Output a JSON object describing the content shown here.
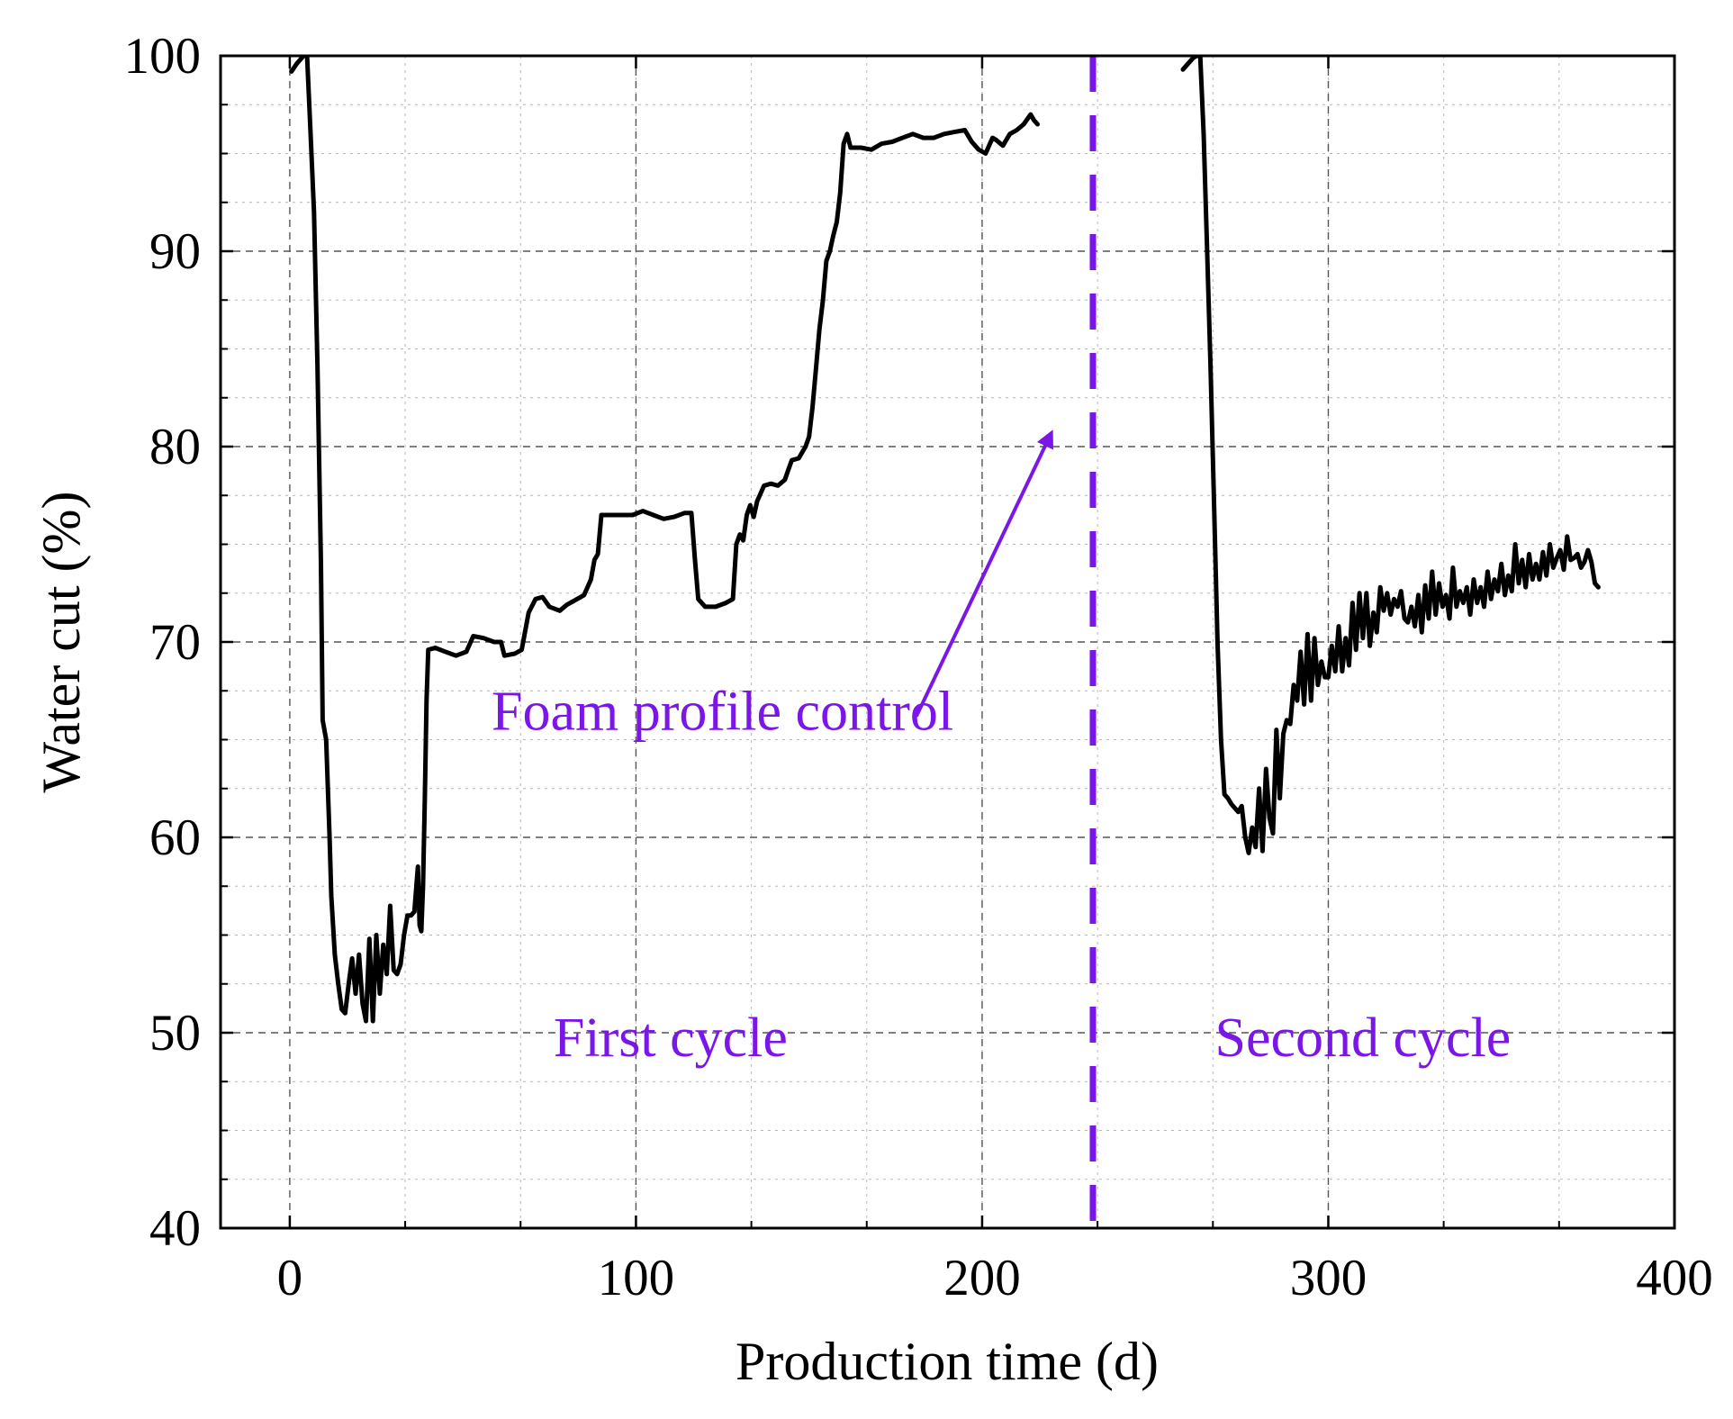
{
  "chart_data": {
    "type": "line",
    "title": "",
    "xlabel": "Production time (d)",
    "ylabel": "Water cut (%)",
    "xlim": [
      -20,
      400
    ],
    "ylim": [
      40,
      100
    ],
    "xticks": [
      0,
      100,
      200,
      300,
      400
    ],
    "yticks": [
      40,
      50,
      60,
      70,
      80,
      90,
      100
    ],
    "x_minor_step": 33.333,
    "y_minor_step": 2.5,
    "grid": true,
    "colors": {
      "series": "#000000",
      "accent": "#7b16e8",
      "grid": "#9a9a9a"
    },
    "series": [
      {
        "name": "First cycle",
        "points": [
          [
            0.5,
            99.2
          ],
          [
            2,
            99.6
          ],
          [
            4,
            100
          ],
          [
            5,
            100
          ],
          [
            6,
            96
          ],
          [
            7,
            92
          ],
          [
            8,
            84
          ],
          [
            9,
            74
          ],
          [
            9.5,
            66
          ],
          [
            10.5,
            65
          ],
          [
            11.5,
            60
          ],
          [
            12,
            57
          ],
          [
            13,
            54
          ],
          [
            14,
            52.5
          ],
          [
            15,
            51.2
          ],
          [
            16,
            51
          ],
          [
            17,
            52.5
          ],
          [
            18,
            53.8
          ],
          [
            19,
            52
          ],
          [
            20,
            54
          ],
          [
            21,
            51.5
          ],
          [
            22,
            50.6
          ],
          [
            23,
            54.8
          ],
          [
            24,
            50.6
          ],
          [
            25,
            55
          ],
          [
            26,
            52
          ],
          [
            27,
            54.5
          ],
          [
            28,
            53
          ],
          [
            29,
            56.5
          ],
          [
            30,
            53.2
          ],
          [
            31,
            53
          ],
          [
            32,
            53.5
          ],
          [
            33,
            55
          ],
          [
            34,
            56
          ],
          [
            35,
            56
          ],
          [
            36,
            56.2
          ],
          [
            37,
            58.5
          ],
          [
            37.5,
            55.5
          ],
          [
            38,
            55.2
          ],
          [
            38.5,
            57.5
          ],
          [
            39,
            62
          ],
          [
            39.5,
            67
          ],
          [
            40,
            69.6
          ],
          [
            42,
            69.7
          ],
          [
            45,
            69.5
          ],
          [
            48,
            69.3
          ],
          [
            51,
            69.5
          ],
          [
            53,
            70.3
          ],
          [
            56,
            70.2
          ],
          [
            59,
            70
          ],
          [
            61,
            70
          ],
          [
            62,
            69.3
          ],
          [
            65,
            69.4
          ],
          [
            67,
            69.6
          ],
          [
            69,
            71.5
          ],
          [
            71,
            72.2
          ],
          [
            73,
            72.3
          ],
          [
            75,
            71.8
          ],
          [
            78,
            71.6
          ],
          [
            80,
            71.9
          ],
          [
            83,
            72.2
          ],
          [
            85,
            72.4
          ],
          [
            87,
            73.2
          ],
          [
            88,
            74.2
          ],
          [
            89,
            74.5
          ],
          [
            90,
            76.5
          ],
          [
            93,
            76.5
          ],
          [
            96,
            76.5
          ],
          [
            99,
            76.5
          ],
          [
            102,
            76.7
          ],
          [
            105,
            76.5
          ],
          [
            108,
            76.3
          ],
          [
            111,
            76.4
          ],
          [
            114,
            76.6
          ],
          [
            116,
            76.6
          ],
          [
            117,
            74.3
          ],
          [
            118,
            72.2
          ],
          [
            120,
            71.8
          ],
          [
            123,
            71.8
          ],
          [
            126,
            72
          ],
          [
            128,
            72.2
          ],
          [
            129,
            75
          ],
          [
            130,
            75.5
          ],
          [
            131,
            75.2
          ],
          [
            132,
            76.5
          ],
          [
            133,
            77
          ],
          [
            134,
            76.4
          ],
          [
            135,
            77.2
          ],
          [
            137,
            78
          ],
          [
            139,
            78.1
          ],
          [
            141,
            78
          ],
          [
            143,
            78.3
          ],
          [
            144,
            78.8
          ],
          [
            145,
            79.3
          ],
          [
            147,
            79.4
          ],
          [
            149,
            80
          ],
          [
            150,
            80.5
          ],
          [
            151,
            82
          ],
          [
            152,
            84
          ],
          [
            153,
            86
          ],
          [
            154,
            87.5
          ],
          [
            155,
            89.5
          ],
          [
            156,
            90
          ],
          [
            157,
            90.8
          ],
          [
            158,
            91.5
          ],
          [
            159,
            93
          ],
          [
            160,
            95.5
          ],
          [
            161,
            96
          ],
          [
            162,
            95.3
          ],
          [
            165,
            95.3
          ],
          [
            168,
            95.2
          ],
          [
            171,
            95.5
          ],
          [
            174,
            95.6
          ],
          [
            177,
            95.8
          ],
          [
            180,
            96
          ],
          [
            183,
            95.8
          ],
          [
            186,
            95.8
          ],
          [
            189,
            96
          ],
          [
            192,
            96.1
          ],
          [
            195,
            96.2
          ],
          [
            197,
            95.6
          ],
          [
            199,
            95.2
          ],
          [
            201,
            95
          ],
          [
            203,
            95.8
          ],
          [
            204,
            95.7
          ],
          [
            206,
            95.4
          ],
          [
            208,
            96
          ],
          [
            210,
            96.2
          ],
          [
            212,
            96.5
          ],
          [
            214,
            97
          ],
          [
            215,
            96.7
          ],
          [
            216,
            96.5
          ]
        ]
      },
      {
        "name": "Second cycle",
        "points": [
          [
            258,
            99.3
          ],
          [
            259.5,
            99.6
          ],
          [
            261,
            99.9
          ],
          [
            262,
            100
          ],
          [
            263,
            100
          ],
          [
            264,
            96
          ],
          [
            265,
            90
          ],
          [
            266,
            84
          ],
          [
            267,
            77
          ],
          [
            268,
            70
          ],
          [
            269,
            65
          ],
          [
            270,
            62.2
          ],
          [
            271,
            62
          ],
          [
            272,
            61.7
          ],
          [
            273,
            61.5
          ],
          [
            274,
            61.3
          ],
          [
            275,
            61.6
          ],
          [
            276,
            60
          ],
          [
            277,
            59.2
          ],
          [
            278,
            60.5
          ],
          [
            279,
            59.5
          ],
          [
            280,
            62.5
          ],
          [
            281,
            59.3
          ],
          [
            282,
            63.5
          ],
          [
            283,
            61
          ],
          [
            284,
            60.2
          ],
          [
            285,
            65.5
          ],
          [
            286,
            62
          ],
          [
            287,
            65.3
          ],
          [
            288,
            66
          ],
          [
            289,
            65.8
          ],
          [
            290,
            67.8
          ],
          [
            291,
            67
          ],
          [
            292,
            69.5
          ],
          [
            293,
            66.8
          ],
          [
            294,
            70.4
          ],
          [
            295,
            67
          ],
          [
            296,
            70.2
          ],
          [
            297,
            67.8
          ],
          [
            298,
            69
          ],
          [
            299,
            68.2
          ],
          [
            300,
            68.2
          ],
          [
            301,
            69.8
          ],
          [
            302,
            68.5
          ],
          [
            303,
            70.8
          ],
          [
            304,
            68.5
          ],
          [
            305,
            70.2
          ],
          [
            306,
            68.8
          ],
          [
            307,
            72
          ],
          [
            308,
            69.6
          ],
          [
            309,
            72.5
          ],
          [
            310,
            70.2
          ],
          [
            311,
            72.5
          ],
          [
            312,
            69.8
          ],
          [
            313,
            71.5
          ],
          [
            314,
            70.5
          ],
          [
            315,
            72.8
          ],
          [
            316,
            71.6
          ],
          [
            317,
            72.5
          ],
          [
            318,
            71.4
          ],
          [
            319,
            72.2
          ],
          [
            320,
            71.8
          ],
          [
            321,
            72.6
          ],
          [
            322,
            71.2
          ],
          [
            323,
            71
          ],
          [
            324,
            71.8
          ],
          [
            325,
            70.8
          ],
          [
            326,
            72.4
          ],
          [
            327,
            70.5
          ],
          [
            328,
            72.9
          ],
          [
            329,
            71.2
          ],
          [
            330,
            73.6
          ],
          [
            331,
            71.4
          ],
          [
            332,
            73
          ],
          [
            333,
            71.8
          ],
          [
            334,
            72.4
          ],
          [
            335,
            71.2
          ],
          [
            336,
            73.8
          ],
          [
            337,
            71.8
          ],
          [
            338,
            72.6
          ],
          [
            339,
            72
          ],
          [
            340,
            72.8
          ],
          [
            341,
            71.4
          ],
          [
            342,
            73.2
          ],
          [
            343,
            72
          ],
          [
            344,
            72.8
          ],
          [
            345,
            71.8
          ],
          [
            346,
            73.6
          ],
          [
            347,
            72.2
          ],
          [
            348,
            73.2
          ],
          [
            349,
            72.6
          ],
          [
            350,
            74
          ],
          [
            351,
            72.4
          ],
          [
            352,
            73.4
          ],
          [
            353,
            72.6
          ],
          [
            354,
            75
          ],
          [
            355,
            73
          ],
          [
            356,
            74.2
          ],
          [
            357,
            72.8
          ],
          [
            358,
            74.5
          ],
          [
            359,
            73.2
          ],
          [
            360,
            74
          ],
          [
            361,
            73.2
          ],
          [
            362,
            74.6
          ],
          [
            363,
            73.4
          ],
          [
            364,
            75
          ],
          [
            365,
            73.8
          ],
          [
            366,
            74.3
          ],
          [
            367,
            74.7
          ],
          [
            368,
            73.7
          ],
          [
            369,
            75.4
          ],
          [
            370,
            74.2
          ],
          [
            371,
            74.3
          ],
          [
            372,
            74.5
          ],
          [
            373,
            73.8
          ],
          [
            374,
            74.1
          ],
          [
            375,
            74.7
          ],
          [
            376,
            74.1
          ],
          [
            377,
            73
          ],
          [
            378,
            72.8
          ]
        ]
      }
    ],
    "divider": {
      "x": 232,
      "label": ""
    },
    "annotations": [
      {
        "text": "Foam profile control",
        "x": 125,
        "y": 65.5
      },
      {
        "text": "First cycle",
        "x": 110,
        "y": 48.8
      },
      {
        "text": "Second cycle",
        "x": 310,
        "y": 48.8
      }
    ],
    "arrow": {
      "from": [
        181,
        66.2
      ],
      "to": [
        220,
        80.7
      ]
    }
  }
}
